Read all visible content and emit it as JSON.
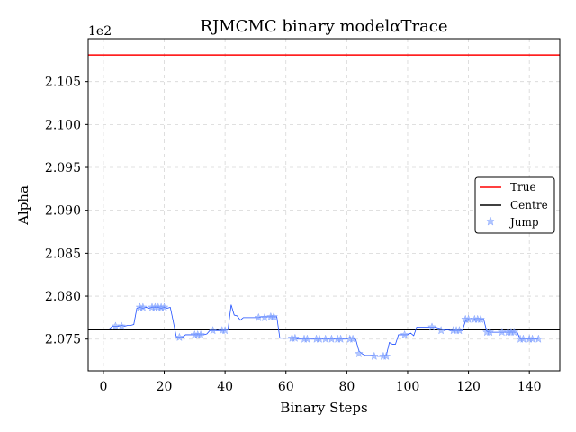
{
  "chart_data": {
    "type": "line",
    "title": "RJMCMC binary modelαTrace",
    "xlabel": "Binary Steps",
    "ylabel": "Alpha",
    "y_offset_label": "1e2",
    "xlim": [
      -5,
      150
    ],
    "ylim": [
      207.13,
      211.0
    ],
    "x_ticks": [
      0,
      20,
      40,
      60,
      80,
      100,
      120,
      140
    ],
    "y_ticks": [
      207.5,
      208.0,
      208.5,
      209.0,
      209.5,
      210.0,
      210.5
    ],
    "y_tick_labels": [
      "2.075",
      "2.080",
      "2.085",
      "2.090",
      "2.095",
      "2.100",
      "2.105"
    ],
    "grid": true,
    "legend_position": "right",
    "colors": {
      "trace": "#1f4fff",
      "jump": "#7a9cff",
      "true": "#ff0000",
      "centre": "#000000"
    },
    "series": [
      {
        "name": "True",
        "kind": "hline",
        "y": 210.81
      },
      {
        "name": "Centre",
        "kind": "hline",
        "y": 207.61
      },
      {
        "kind": "trace",
        "x": [
          2,
          3,
          4,
          5,
          6,
          7,
          8,
          9,
          10,
          11,
          12,
          13,
          14,
          15,
          16,
          17,
          18,
          19,
          20,
          21,
          22,
          23,
          24,
          25,
          26,
          27,
          28,
          29,
          30,
          31,
          32,
          33,
          34,
          35,
          36,
          37,
          38,
          39,
          40,
          41,
          42,
          43,
          44,
          45,
          46,
          47,
          48,
          49,
          50,
          51,
          52,
          53,
          54,
          55,
          56,
          57,
          58,
          59,
          60,
          61,
          62,
          63,
          64,
          65,
          66,
          67,
          68,
          69,
          70,
          71,
          72,
          73,
          74,
          75,
          76,
          77,
          78,
          79,
          80,
          81,
          82,
          83,
          84,
          85,
          86,
          87,
          88,
          89,
          90,
          91,
          92,
          93,
          94,
          95,
          96,
          97,
          98,
          99,
          100,
          101,
          102,
          103,
          104,
          105,
          106,
          107,
          108,
          109,
          110,
          111,
          112,
          113,
          114,
          115,
          116,
          117,
          118,
          119,
          120,
          121,
          122,
          123,
          124,
          125,
          126,
          127,
          128,
          129,
          130,
          131,
          132,
          133,
          134,
          135,
          136,
          137,
          138,
          139,
          140,
          141,
          142,
          143
        ],
        "y": [
          207.62,
          207.65,
          207.65,
          207.65,
          207.66,
          207.65,
          207.66,
          207.66,
          207.67,
          207.86,
          207.87,
          207.86,
          207.87,
          207.86,
          207.87,
          207.87,
          207.87,
          207.86,
          207.87,
          207.86,
          207.87,
          207.7,
          207.52,
          207.52,
          207.52,
          207.55,
          207.55,
          207.55,
          207.55,
          207.55,
          207.55,
          207.55,
          207.56,
          207.6,
          207.6,
          207.6,
          207.6,
          207.6,
          207.6,
          207.62,
          207.9,
          207.78,
          207.77,
          207.72,
          207.75,
          207.75,
          207.75,
          207.75,
          207.75,
          207.75,
          207.76,
          207.76,
          207.76,
          207.76,
          207.76,
          207.76,
          207.51,
          207.51,
          207.51,
          207.51,
          207.51,
          207.51,
          207.5,
          207.5,
          207.5,
          207.5,
          207.5,
          207.5,
          207.5,
          207.5,
          207.5,
          207.5,
          207.5,
          207.5,
          207.5,
          207.5,
          207.5,
          207.5,
          207.5,
          207.52,
          207.51,
          207.49,
          207.36,
          207.33,
          207.31,
          207.31,
          207.31,
          207.31,
          207.3,
          207.3,
          207.3,
          207.31,
          207.46,
          207.44,
          207.44,
          207.55,
          207.55,
          207.55,
          207.55,
          207.57,
          207.54,
          207.64,
          207.64,
          207.64,
          207.64,
          207.64,
          207.64,
          207.64,
          207.63,
          207.62,
          207.6,
          207.61,
          207.6,
          207.6,
          207.6,
          207.6,
          207.6,
          207.71,
          207.73,
          207.72,
          207.73,
          207.72,
          207.73,
          207.73,
          207.59,
          207.58,
          207.58,
          207.58,
          207.58,
          207.58,
          207.58,
          207.58,
          207.58,
          207.58,
          207.58,
          207.5,
          207.5,
          207.5,
          207.5,
          207.5,
          207.5,
          207.5
        ]
      },
      {
        "name": "Jump",
        "kind": "scatter",
        "x": [
          4,
          6,
          12,
          13,
          16,
          17,
          18,
          19,
          20,
          25,
          30,
          31,
          32,
          36,
          39,
          40,
          51,
          53,
          55,
          56,
          62,
          63,
          66,
          67,
          70,
          71,
          73,
          75,
          77,
          78,
          81,
          82,
          84,
          89,
          92,
          93,
          99,
          108,
          111,
          115,
          116,
          117,
          119,
          120,
          122,
          123,
          124,
          126,
          127,
          131,
          133,
          134,
          135,
          137,
          138,
          140,
          141,
          143
        ],
        "y": [
          207.65,
          207.65,
          207.87,
          207.87,
          207.87,
          207.87,
          207.87,
          207.87,
          207.87,
          207.52,
          207.55,
          207.55,
          207.55,
          207.6,
          207.6,
          207.6,
          207.75,
          207.75,
          207.76,
          207.76,
          207.51,
          207.51,
          207.5,
          207.5,
          207.5,
          207.5,
          207.5,
          207.5,
          207.5,
          207.5,
          207.5,
          207.5,
          207.33,
          207.3,
          207.3,
          207.3,
          207.55,
          207.64,
          207.6,
          207.6,
          207.6,
          207.6,
          207.73,
          207.73,
          207.73,
          207.73,
          207.73,
          207.58,
          207.58,
          207.58,
          207.58,
          207.58,
          207.58,
          207.5,
          207.5,
          207.5,
          207.5,
          207.5
        ]
      }
    ]
  }
}
